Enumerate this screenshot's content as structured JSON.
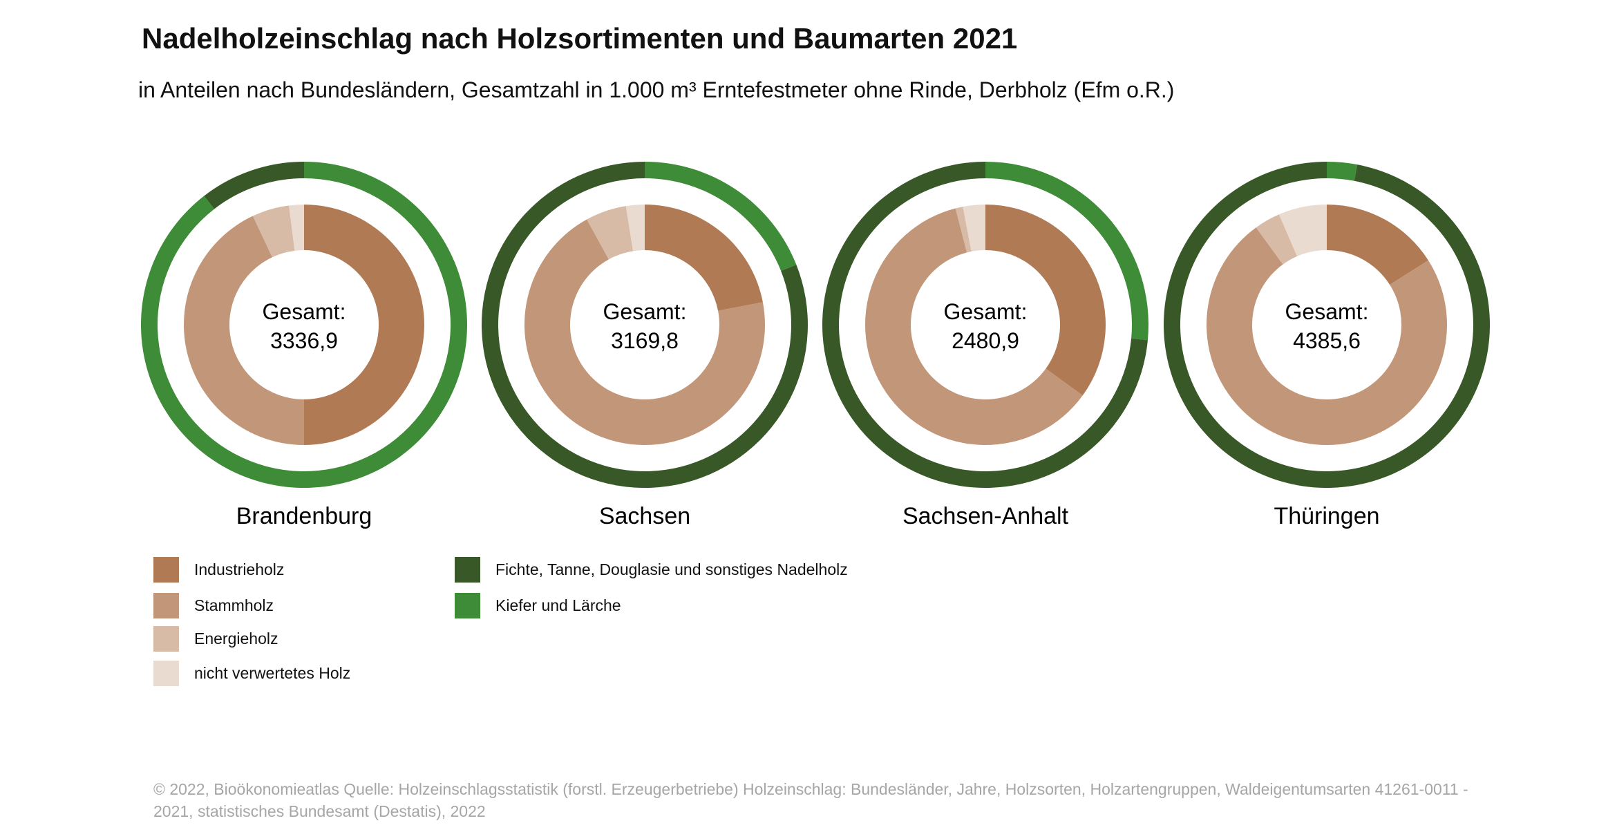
{
  "title": "Nadelholzeinschlag nach Holzsortimenten und Baumarten 2021",
  "subtitle": "in Anteilen nach Bundesländern, Gesamtzahl in 1.000 m³ Erntefestmeter ohne Rinde, Derbholz (Efm o.R.)",
  "center_prefix": "Gesamt:",
  "colors": {
    "industrieholz": "#b07a55",
    "stammholz": "#c29679",
    "energieholz": "#d8bba6",
    "nicht_verwertet": "#eadbd0",
    "fichte": "#385828",
    "kiefer": "#3e8c37"
  },
  "legend": {
    "sortimente": [
      {
        "key": "industrieholz",
        "label": "Industrieholz"
      },
      {
        "key": "stammholz",
        "label": "Stammholz"
      },
      {
        "key": "energieholz",
        "label": "Energieholz"
      },
      {
        "key": "nicht_verwertet",
        "label": "nicht verwertetes Holz"
      }
    ],
    "baumarten": [
      {
        "key": "fichte",
        "label": "Fichte, Tanne, Douglasie und sonstiges Nadelholz"
      },
      {
        "key": "kiefer",
        "label": "Kiefer und Lärche"
      }
    ]
  },
  "chart_data": {
    "type": "pie",
    "subtype": "nested-donut",
    "inner_ring_order": [
      "industrieholz",
      "stammholz",
      "energieholz",
      "nicht_verwertet"
    ],
    "outer_ring_order": [
      "kiefer",
      "fichte"
    ],
    "regions": [
      {
        "name": "Brandenburg",
        "total": "3336,9",
        "inner": {
          "industrieholz": 50,
          "stammholz": 43,
          "energieholz": 5,
          "nicht_verwertet": 2
        },
        "outer": {
          "kiefer": 89.5,
          "fichte": 10.5
        }
      },
      {
        "name": "Sachsen",
        "total": "3169,8",
        "inner": {
          "industrieholz": 22,
          "stammholz": 70,
          "energieholz": 5.5,
          "nicht_verwertet": 2.5
        },
        "outer": {
          "kiefer": 19,
          "fichte": 81
        }
      },
      {
        "name": "Sachsen-Anhalt",
        "total": "2480,9",
        "inner": {
          "industrieholz": 35,
          "stammholz": 61,
          "energieholz": 1,
          "nicht_verwertet": 3
        },
        "outer": {
          "kiefer": 26.5,
          "fichte": 73.5
        }
      },
      {
        "name": "Thüringen",
        "total": "4385,6",
        "inner": {
          "industrieholz": 16,
          "stammholz": 74,
          "energieholz": 3.5,
          "nicht_verwertet": 6.5
        },
        "outer": {
          "kiefer": 3,
          "fichte": 97
        }
      }
    ]
  },
  "footer": "© 2022, Bioökonomieatlas Quelle: Holzeinschlagsstatistik (forstl. Erzeugerbetriebe) Holzeinschlag: Bundesländer, Jahre, Holzsorten, Holzartengruppen, Waldeigentumsarten 41261-0011 - 2021, statistisches Bundesamt (Destatis), 2022"
}
